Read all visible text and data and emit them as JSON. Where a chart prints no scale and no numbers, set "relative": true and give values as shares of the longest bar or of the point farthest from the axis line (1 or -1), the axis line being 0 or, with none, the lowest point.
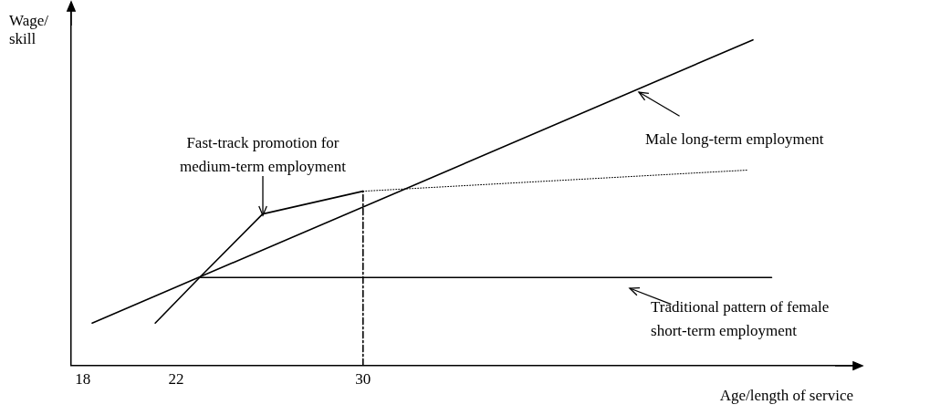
{
  "chart_data": {
    "type": "line",
    "relative": true,
    "xlabel": "Age/length of service",
    "ylabel": "Wage/\nskill",
    "xlim": [
      17.5,
      51
    ],
    "xticks": [
      18,
      22,
      30
    ],
    "grid": false,
    "legend": false,
    "marker": "none",
    "tick_labels": "x",
    "series": [
      {
        "color": "#000000",
        "x": [
          18.4,
          46.7
        ],
        "values": [
          0.13,
          1
        ]
      },
      {
        "color": "#000000",
        "x": [
          21.1,
          23,
          25.7,
          30
        ],
        "values": [
          0.13,
          0.27,
          0.465,
          0.535
        ]
      },
      {
        "color": "#000000",
        "x": [
          30,
          46.5
        ],
        "values": [
          0.535,
          0.6
        ],
        "line_style": "dotted"
      },
      {
        "color": "#000000",
        "x": [
          23,
          47.5
        ],
        "values": [
          0.27,
          0.27
        ]
      },
      {
        "color": "#000000",
        "x": [
          30,
          30
        ],
        "values": [
          0,
          0.535
        ],
        "line_style": "dashed"
      }
    ],
    "annotations": [
      "Fast-track promotion for\nmedium-term employment",
      "Male long-term employment",
      "Traditional pattern of female\nshort-term employment"
    ]
  }
}
